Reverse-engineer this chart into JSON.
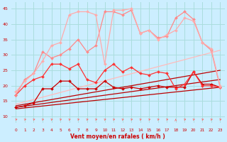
{
  "xlabel": "Vent moyen/en rafales ( km/h )",
  "bg_color": "#cceeff",
  "grid_color": "#aadddd",
  "xlim": [
    -0.5,
    23.5
  ],
  "ylim": [
    8,
    47
  ],
  "yticks": [
    10,
    15,
    20,
    25,
    30,
    35,
    40,
    45
  ],
  "xticks": [
    0,
    1,
    2,
    3,
    4,
    5,
    6,
    7,
    8,
    9,
    10,
    11,
    12,
    13,
    14,
    15,
    16,
    17,
    18,
    19,
    20,
    21,
    22,
    23
  ],
  "series": [
    {
      "x": [
        0,
        23
      ],
      "y": [
        12.5,
        19.5
      ],
      "color": "#bb0000",
      "lw": 0.9,
      "marker": null,
      "ls": "-"
    },
    {
      "x": [
        0,
        23
      ],
      "y": [
        13.0,
        22.0
      ],
      "color": "#bb0000",
      "lw": 0.9,
      "marker": null,
      "ls": "-"
    },
    {
      "x": [
        0,
        23
      ],
      "y": [
        13.5,
        25.0
      ],
      "color": "#bb0000",
      "lw": 0.9,
      "marker": null,
      "ls": "-"
    },
    {
      "x": [
        0,
        23
      ],
      "y": [
        14.0,
        31.5
      ],
      "color": "#ffbbbb",
      "lw": 0.9,
      "marker": null,
      "ls": "-"
    },
    {
      "x": [
        0,
        1,
        2,
        3,
        4,
        5,
        6,
        7,
        8,
        9,
        10,
        11,
        12,
        13,
        14,
        15,
        16,
        17,
        18,
        19,
        20,
        21,
        22,
        23
      ],
      "y": [
        13,
        13.5,
        14.5,
        19,
        19,
        21.5,
        21.5,
        19,
        19,
        19,
        21.5,
        19.5,
        19,
        19.5,
        19,
        19.5,
        20,
        19.5,
        19.5,
        19.5,
        24.5,
        20.5,
        20.5,
        19.5
      ],
      "color": "#cc0000",
      "lw": 0.9,
      "marker": "D",
      "ms": 2,
      "ls": "-"
    },
    {
      "x": [
        0,
        1,
        2,
        3,
        4,
        5,
        6,
        7,
        8,
        9,
        10,
        11,
        12,
        13,
        14,
        15,
        16,
        17,
        18,
        19,
        20,
        21,
        22,
        23
      ],
      "y": [
        17,
        20,
        22,
        23,
        27,
        27,
        25.5,
        27,
        22,
        21,
        25,
        27,
        24.5,
        26,
        24,
        23.5,
        24.5,
        24,
        19,
        20.5,
        24.5,
        20,
        20,
        19.5
      ],
      "color": "#ff3333",
      "lw": 0.9,
      "marker": "D",
      "ms": 2,
      "ls": "-"
    },
    {
      "x": [
        0,
        1,
        2,
        3,
        4,
        5,
        6,
        7,
        8,
        9,
        10,
        11,
        12,
        13,
        14,
        15,
        16,
        17,
        18,
        19,
        20,
        21,
        22,
        23
      ],
      "y": [
        17,
        22,
        24,
        31,
        29,
        30,
        32,
        35,
        31,
        33,
        44,
        44,
        43,
        44.5,
        37,
        38,
        35.5,
        36,
        42,
        44,
        41.5,
        34,
        31.5,
        19.5
      ],
      "color": "#ff8888",
      "lw": 0.9,
      "marker": "D",
      "ms": 2,
      "ls": "-"
    },
    {
      "x": [
        0,
        1,
        2,
        3,
        4,
        5,
        6,
        7,
        8,
        9,
        10,
        11,
        12,
        13,
        14,
        15,
        16,
        17,
        18,
        19,
        20,
        21,
        22,
        23
      ],
      "y": [
        18,
        21.5,
        24,
        28,
        33,
        34,
        43,
        44,
        44,
        43,
        27,
        44.5,
        44.5,
        45,
        37,
        38,
        35,
        36.5,
        38,
        42,
        41,
        34,
        32,
        20
      ],
      "color": "#ffaaaa",
      "lw": 0.9,
      "marker": "D",
      "ms": 2,
      "ls": "-"
    }
  ],
  "arrow_dirs": [
    45,
    45,
    45,
    45,
    45,
    45,
    45,
    45,
    45,
    45,
    45,
    45,
    45,
    45,
    45,
    45,
    45,
    45,
    0,
    45,
    45,
    45,
    45,
    45
  ]
}
